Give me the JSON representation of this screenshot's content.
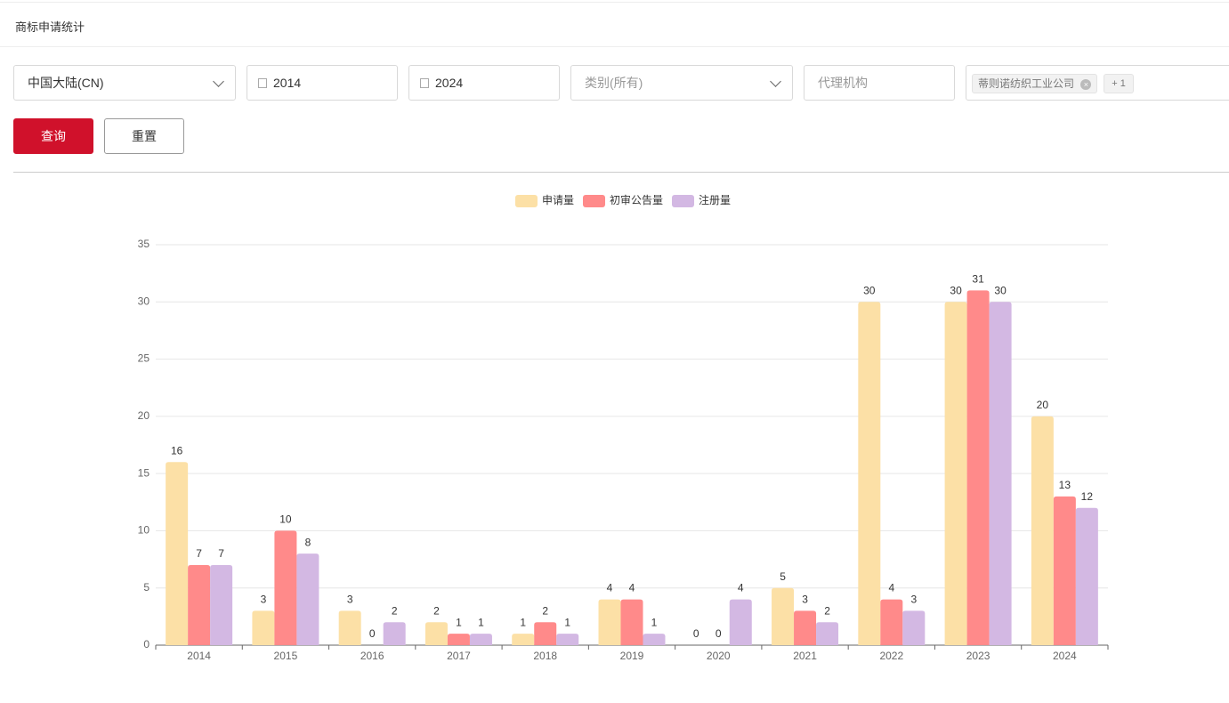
{
  "header": {
    "title": "商标申请统计"
  },
  "filters": {
    "region": "中国大陆(CN)",
    "start_year": "2014",
    "end_year": "2024",
    "category": "类别(所有)",
    "agency_placeholder": "代理机构",
    "applicant_tag": "蒂则诺纺织工业公司",
    "more_tags": "+ 1"
  },
  "buttons": {
    "query": "查询",
    "reset": "重置"
  },
  "chart_data": {
    "type": "bar",
    "categories": [
      "2014",
      "2015",
      "2016",
      "2017",
      "2018",
      "2019",
      "2020",
      "2021",
      "2022",
      "2023",
      "2024"
    ],
    "series": [
      {
        "name": "申请量",
        "color": "#fce0a6",
        "values": [
          16,
          3,
          3,
          2,
          1,
          4,
          0,
          5,
          30,
          30,
          20
        ]
      },
      {
        "name": "初审公告量",
        "color": "#ff8a8a",
        "values": [
          7,
          10,
          0,
          1,
          2,
          4,
          0,
          3,
          4,
          31,
          13
        ]
      },
      {
        "name": "注册量",
        "color": "#d3b8e3",
        "values": [
          7,
          8,
          2,
          1,
          1,
          1,
          4,
          2,
          3,
          30,
          12
        ]
      }
    ],
    "ylim": [
      0,
      35
    ],
    "yticks": [
      0,
      5,
      10,
      15,
      20,
      25,
      30,
      35
    ],
    "grid": true,
    "legend": "top"
  }
}
